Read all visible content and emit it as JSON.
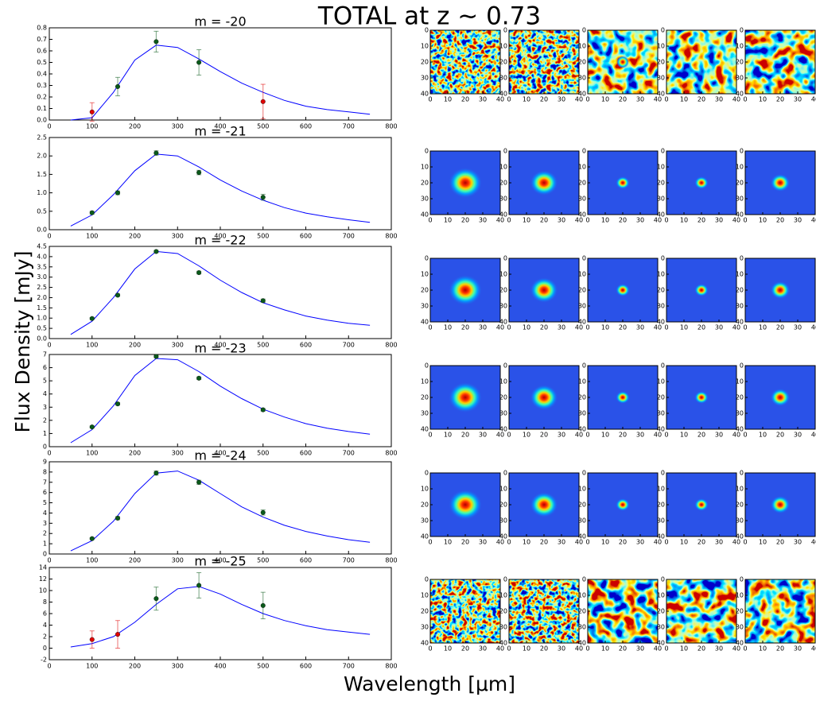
{
  "title": "TOTAL at z ~ 0.73",
  "xlabel": "Wavelength [μm]",
  "ylabel": "Flux Density [mJy]",
  "images": {
    "xlim": [
      0,
      40
    ],
    "ylim": [
      0,
      40
    ],
    "y_inverted": true,
    "xticks": [
      0,
      10,
      20,
      30,
      40
    ],
    "yticks": [
      0,
      10,
      20,
      30,
      40
    ]
  },
  "chart_data": [
    {
      "type": "line",
      "title": "m = -20",
      "x": [
        50,
        100,
        150,
        200,
        250,
        300,
        350,
        400,
        450,
        500,
        550,
        600,
        650,
        700,
        750
      ],
      "xlim": [
        0,
        800
      ],
      "xticks": [
        0,
        100,
        200,
        300,
        400,
        500,
        600,
        700,
        800
      ],
      "ylim": [
        0,
        0.8
      ],
      "yticks": [
        {
          "value": 0,
          "label": "0.0"
        },
        0.1,
        0.2,
        0.3,
        0.4,
        0.5,
        0.6,
        0.7,
        0.8
      ],
      "curve": {
        "color": "#0000ff",
        "values": [
          0.0,
          0.02,
          0.24,
          0.52,
          0.65,
          0.63,
          0.53,
          0.42,
          0.32,
          0.24,
          0.17,
          0.12,
          0.09,
          0.07,
          0.05
        ]
      },
      "points": {
        "x": [
          100,
          160,
          250,
          350,
          500
        ],
        "values": [
          0.07,
          0.29,
          0.68,
          0.5,
          0.16
        ],
        "errors": [
          0.08,
          0.08,
          0.09,
          0.11,
          0.15
        ],
        "colors": [
          "#e00000",
          "#0a5a1a",
          "#0a5a1a",
          "#0a5a1a",
          "#e00000"
        ]
      }
    },
    {
      "type": "line",
      "title": "m = -21",
      "x": [
        50,
        100,
        150,
        200,
        250,
        300,
        350,
        400,
        450,
        500,
        550,
        600,
        650,
        700,
        750
      ],
      "xlim": [
        0,
        800
      ],
      "xticks": [
        0,
        100,
        200,
        300,
        400,
        500,
        600,
        700,
        800
      ],
      "ylim": [
        0,
        2.5
      ],
      "yticks": [
        {
          "value": 0,
          "label": "0.0"
        },
        0.5,
        {
          "value": 1,
          "label": "1.0"
        },
        1.5,
        {
          "value": 2,
          "label": "2.0"
        },
        2.5
      ],
      "curve": {
        "color": "#0000ff",
        "values": [
          0.1,
          0.4,
          0.95,
          1.6,
          2.05,
          2.0,
          1.7,
          1.35,
          1.05,
          0.8,
          0.6,
          0.45,
          0.35,
          0.27,
          0.2
        ]
      },
      "points": {
        "x": [
          100,
          160,
          250,
          350,
          500
        ],
        "values": [
          0.46,
          1.0,
          2.08,
          1.55,
          0.88
        ],
        "errors": [
          0.04,
          0.05,
          0.06,
          0.06,
          0.08
        ],
        "colors": [
          "#0a5a1a",
          "#0a5a1a",
          "#0a5a1a",
          "#0a5a1a",
          "#0a5a1a"
        ]
      }
    },
    {
      "type": "line",
      "title": "m = -22",
      "x": [
        50,
        100,
        150,
        200,
        250,
        300,
        350,
        400,
        450,
        500,
        550,
        600,
        650,
        700,
        750
      ],
      "xlim": [
        0,
        800
      ],
      "xticks": [
        0,
        100,
        200,
        300,
        400,
        500,
        600,
        700,
        800
      ],
      "ylim": [
        0,
        4.5
      ],
      "yticks": [
        {
          "value": 0,
          "label": "0.0"
        },
        0.5,
        {
          "value": 1,
          "label": "1.0"
        },
        1.5,
        {
          "value": 2,
          "label": "2.0"
        },
        2.5,
        {
          "value": 3,
          "label": "3.0"
        },
        3.5,
        {
          "value": 4,
          "label": "4.0"
        },
        4.5
      ],
      "curve": {
        "color": "#0000ff",
        "values": [
          0.2,
          0.85,
          2.0,
          3.4,
          4.25,
          4.15,
          3.55,
          2.85,
          2.25,
          1.75,
          1.4,
          1.1,
          0.9,
          0.75,
          0.65
        ]
      },
      "points": {
        "x": [
          100,
          160,
          250,
          350,
          500
        ],
        "values": [
          0.98,
          2.12,
          4.25,
          3.22,
          1.85
        ],
        "errors": [
          0.05,
          0.06,
          0.06,
          0.07,
          0.08
        ],
        "colors": [
          "#0a5a1a",
          "#0a5a1a",
          "#0a5a1a",
          "#0a5a1a",
          "#0a5a1a"
        ]
      }
    },
    {
      "type": "line",
      "title": "m = -23",
      "x": [
        50,
        100,
        150,
        200,
        250,
        300,
        350,
        400,
        450,
        500,
        550,
        600,
        650,
        700,
        750
      ],
      "xlim": [
        0,
        800
      ],
      "xticks": [
        0,
        100,
        200,
        300,
        400,
        500,
        600,
        700,
        800
      ],
      "ylim": [
        0,
        7
      ],
      "yticks": [
        0,
        1,
        2,
        3,
        4,
        5,
        6,
        7
      ],
      "curve": {
        "color": "#0000ff",
        "values": [
          0.3,
          1.3,
          3.1,
          5.4,
          6.7,
          6.6,
          5.7,
          4.6,
          3.65,
          2.85,
          2.25,
          1.75,
          1.4,
          1.15,
          0.95
        ]
      },
      "points": {
        "x": [
          100,
          160,
          250,
          350,
          500
        ],
        "values": [
          1.5,
          3.25,
          6.85,
          5.2,
          2.8
        ],
        "errors": [
          0.08,
          0.1,
          0.1,
          0.1,
          0.1
        ],
        "colors": [
          "#0a5a1a",
          "#0a5a1a",
          "#0a5a1a",
          "#0a5a1a",
          "#0a5a1a"
        ]
      }
    },
    {
      "type": "line",
      "title": "m = -24",
      "x": [
        50,
        100,
        150,
        200,
        250,
        300,
        350,
        400,
        450,
        500,
        550,
        600,
        650,
        700,
        750
      ],
      "xlim": [
        0,
        800
      ],
      "xticks": [
        0,
        100,
        200,
        300,
        400,
        500,
        600,
        700,
        800
      ],
      "ylim": [
        0,
        9
      ],
      "yticks": [
        0,
        1,
        2,
        3,
        4,
        5,
        6,
        7,
        8,
        9
      ],
      "curve": {
        "color": "#0000ff",
        "values": [
          0.3,
          1.3,
          3.2,
          5.9,
          7.9,
          8.1,
          7.2,
          5.9,
          4.6,
          3.6,
          2.8,
          2.2,
          1.75,
          1.4,
          1.15
        ]
      },
      "points": {
        "x": [
          100,
          160,
          250,
          350,
          500
        ],
        "values": [
          1.5,
          3.5,
          7.9,
          7.0,
          4.05
        ],
        "errors": [
          0.1,
          0.15,
          0.2,
          0.2,
          0.25
        ],
        "colors": [
          "#0a5a1a",
          "#0a5a1a",
          "#0a5a1a",
          "#0a5a1a",
          "#0a5a1a"
        ]
      }
    },
    {
      "type": "line",
      "title": "m = -25",
      "x": [
        50,
        100,
        150,
        200,
        250,
        300,
        350,
        400,
        450,
        500,
        550,
        600,
        650,
        700,
        750
      ],
      "xlim": [
        0,
        800
      ],
      "xticks": [
        0,
        100,
        200,
        300,
        400,
        500,
        600,
        700,
        800
      ],
      "ylim": [
        -2,
        14
      ],
      "yticks": [
        -2,
        0,
        2,
        4,
        6,
        8,
        10,
        12,
        14
      ],
      "curve": {
        "color": "#0000ff",
        "values": [
          0.2,
          0.8,
          2.0,
          4.5,
          7.6,
          10.3,
          10.7,
          9.4,
          7.6,
          6.0,
          4.8,
          3.9,
          3.2,
          2.8,
          2.4
        ]
      },
      "points": {
        "x": [
          100,
          160,
          250,
          350,
          500
        ],
        "values": [
          1.5,
          2.4,
          8.6,
          10.9,
          7.4
        ],
        "errors": [
          1.5,
          2.4,
          2.0,
          2.2,
          2.3
        ],
        "colors": [
          "#e00000",
          "#e00000",
          "#0a5a1a",
          "#0a5a1a",
          "#0a5a1a"
        ]
      }
    }
  ]
}
